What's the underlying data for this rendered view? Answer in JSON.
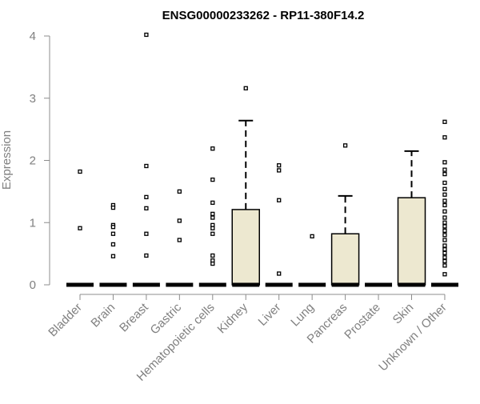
{
  "chart_data": {
    "type": "box",
    "title": "ENSG00000233262 - RP11-380F14.2",
    "xlabel": "",
    "ylabel": "Expression",
    "ylim": [
      0,
      4
    ],
    "yticks": [
      0,
      1,
      2,
      3,
      4
    ],
    "grid": false,
    "legend": "none",
    "colors": {
      "box_fill": "#ede8d0",
      "stroke": "#000000",
      "axis": "#8c8c8c",
      "label": "#808080",
      "title": "#000000"
    },
    "categories": [
      "Bladder",
      "Brain",
      "Breast",
      "Gastric",
      "Hematopoietic cells",
      "Kidney",
      "Liver",
      "Lung",
      "Pancreas",
      "Prostate",
      "Skin",
      "Unknown / Other"
    ],
    "boxes": [
      {
        "category": "Bladder",
        "q1": 0,
        "median": 0,
        "q3": 0,
        "whisker_low": 0,
        "whisker_high": 0,
        "outliers": [
          1.82,
          0.91
        ]
      },
      {
        "category": "Brain",
        "q1": 0,
        "median": 0,
        "q3": 0,
        "whisker_low": 0,
        "whisker_high": 0,
        "outliers": [
          1.28,
          1.24,
          0.96,
          0.93,
          0.82,
          0.65,
          0.46
        ]
      },
      {
        "category": "Breast",
        "q1": 0,
        "median": 0,
        "q3": 0,
        "whisker_low": 0,
        "whisker_high": 0,
        "outliers": [
          4.02,
          1.91,
          1.41,
          1.23,
          0.82,
          0.47
        ]
      },
      {
        "category": "Gastric",
        "q1": 0,
        "median": 0,
        "q3": 0,
        "whisker_low": 0,
        "whisker_high": 0,
        "outliers": [
          1.5,
          1.03,
          0.72
        ]
      },
      {
        "category": "Hematopoietic cells",
        "q1": 0,
        "median": 0,
        "q3": 0,
        "whisker_low": 0,
        "whisker_high": 0,
        "outliers": [
          2.19,
          1.69,
          1.32,
          1.14,
          1.08,
          0.96,
          0.91,
          0.82,
          0.47,
          0.39,
          0.34
        ]
      },
      {
        "category": "Kidney",
        "q1": 0,
        "median": 0,
        "q3": 1.21,
        "whisker_low": 0,
        "whisker_high": 2.64,
        "outliers": [
          3.16
        ]
      },
      {
        "category": "Liver",
        "q1": 0,
        "median": 0,
        "q3": 0,
        "whisker_low": 0,
        "whisker_high": 0,
        "outliers": [
          1.92,
          1.84,
          1.36,
          0.18
        ]
      },
      {
        "category": "Lung",
        "q1": 0,
        "median": 0,
        "q3": 0,
        "whisker_low": 0,
        "whisker_high": 0,
        "outliers": [
          0.78
        ]
      },
      {
        "category": "Pancreas",
        "q1": 0,
        "median": 0,
        "q3": 0.82,
        "whisker_low": 0,
        "whisker_high": 1.43,
        "outliers": [
          2.24
        ]
      },
      {
        "category": "Prostate",
        "q1": 0,
        "median": 0,
        "q3": 0,
        "whisker_low": 0,
        "whisker_high": 0,
        "outliers": []
      },
      {
        "category": "Skin",
        "q1": 0,
        "median": 0,
        "q3": 1.4,
        "whisker_low": 0,
        "whisker_high": 2.15,
        "outliers": []
      },
      {
        "category": "Unknown / Other",
        "q1": 0,
        "median": 0,
        "q3": 0,
        "whisker_low": 0,
        "whisker_high": 0,
        "outliers": [
          2.62,
          2.37,
          1.97,
          1.85,
          1.78,
          1.64,
          1.54,
          1.45,
          1.35,
          1.28,
          1.18,
          1.08,
          1.0,
          0.94,
          0.87,
          0.8,
          0.72,
          0.63,
          0.57,
          0.51,
          0.44,
          0.38,
          0.31,
          0.17
        ]
      }
    ]
  }
}
